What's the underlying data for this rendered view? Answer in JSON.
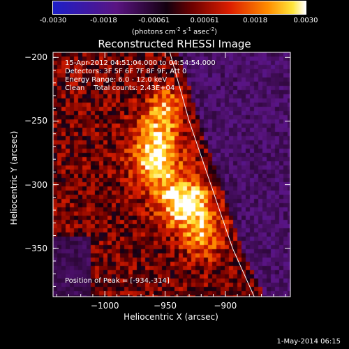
{
  "colorbar": {
    "tick_labels": [
      "-0.0030",
      "-0.0018",
      "-0.00061",
      "0.00061",
      "0.0018",
      "0.0030"
    ],
    "unit_base": "(photons cm",
    "unit_exp1": "-2",
    "unit_mid": " s",
    "unit_exp2": "-1",
    "unit_tail": " asec",
    "unit_exp3": "-2",
    "unit_close": ")",
    "range": [
      -0.003,
      0.003
    ]
  },
  "info": {
    "time_range": "15-Apr-2012 04:51:04.000 to 04:54:54.000",
    "detectors": "Detectors: 3F 5F 6F 7F 8F 9F, Att 0",
    "energy": "Energy Range: 6.0 - 12.0 keV",
    "clean": "Clean    Total counts: 2.43E+04",
    "peak": "Position of Peak = [-934,-314]"
  },
  "footer": {
    "date": "1-May-2014 06:15"
  },
  "chart_data": {
    "type": "heatmap",
    "title": "Reconstructed RHESSI Image",
    "xlabel": "Heliocentric X (arcsec)",
    "ylabel": "Heliocentric Y (arcsec)",
    "xlim": [
      -1043,
      -846
    ],
    "ylim": [
      -388,
      -196
    ],
    "xticks": [
      -1000,
      -950,
      -900
    ],
    "yticks": [
      -200,
      -250,
      -300,
      -350
    ],
    "xtick_labels": [
      "−1000",
      "−950",
      "−900"
    ],
    "ytick_labels": [
      "−200",
      "−250",
      "−300",
      "−350"
    ],
    "peak": [
      -934,
      -314
    ],
    "sources": [
      {
        "x": -958,
        "y": -275,
        "amp": 0.0028,
        "sx": 14,
        "sy": 18
      },
      {
        "x": -934,
        "y": -314,
        "amp": 0.003,
        "sx": 15,
        "sy": 14
      },
      {
        "x": -950,
        "y": -240,
        "amp": 0.0018,
        "sx": 10,
        "sy": 12
      },
      {
        "x": -918,
        "y": -340,
        "amp": 0.0016,
        "sx": 12,
        "sy": 14
      }
    ],
    "limb_arc": [
      [
        -946,
        -196
      ],
      [
        -930,
        -250
      ],
      [
        -912,
        -300
      ],
      [
        -894,
        -350
      ],
      [
        -876,
        -388
      ]
    ]
  }
}
